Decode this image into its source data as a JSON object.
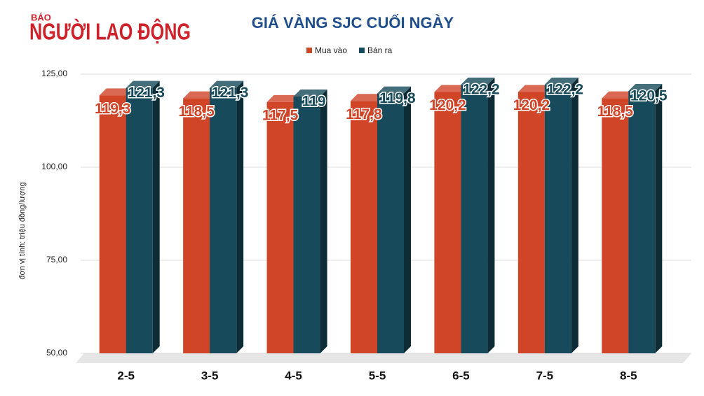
{
  "logo": {
    "small": "BÁO",
    "big": "NGƯỜI LAO ĐỘNG"
  },
  "chart_data": {
    "type": "bar3d",
    "title": "GIÁ VÀNG SJC CUỐI NGÀY",
    "y_label": "đơn vị tính: triệu đồng/lượng",
    "categories": [
      "2-5",
      "3-5",
      "4-5",
      "5-5",
      "6-5",
      "7-5",
      "8-5"
    ],
    "series": [
      {
        "name": "Mua vào",
        "color": "#d04427",
        "values": [
          119.3,
          118.5,
          117.5,
          117.8,
          120.2,
          120.2,
          118.5
        ],
        "value_labels": [
          "119,3",
          "118,5",
          "117,5",
          "117,8",
          "120,2",
          "120,2",
          "118,5"
        ]
      },
      {
        "name": "Bán ra",
        "color": "#174a5a",
        "values": [
          121.3,
          121.3,
          119,
          119.8,
          122.2,
          122.2,
          120.5
        ],
        "value_labels": [
          "121,3",
          "121,3",
          "119",
          "119,8",
          "122,2",
          "122,2",
          "120,5"
        ]
      }
    ],
    "ylim": [
      50,
      125
    ],
    "yticks": [
      {
        "value": 50,
        "label": "50,00"
      },
      {
        "value": 75,
        "label": "75,00"
      },
      {
        "value": 100,
        "label": "100,00"
      },
      {
        "value": 125,
        "label": "125,00"
      }
    ],
    "grid": true,
    "legend": "top"
  }
}
